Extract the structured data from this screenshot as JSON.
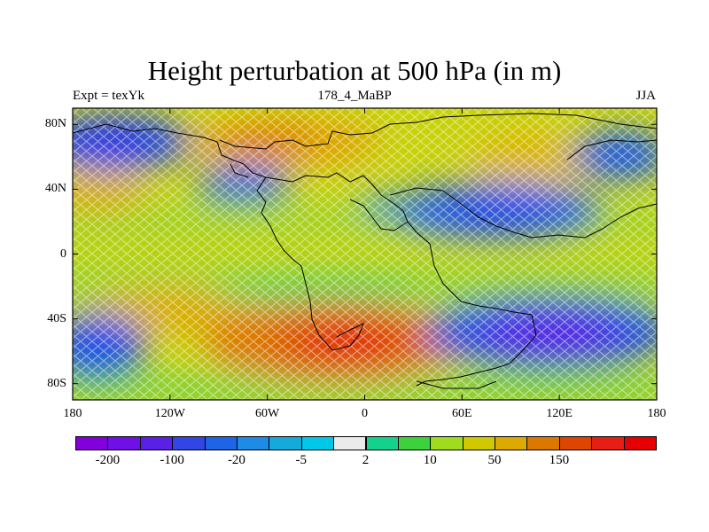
{
  "title": "Height perturbation at 500 hPa (in m)",
  "left_string": "Expt = texYk",
  "center_string": "178_4_MaBP",
  "right_string": "JJA",
  "map": {
    "projection": "cylindrical-equidistant",
    "lon_range": [
      -180,
      180
    ],
    "lat_range": [
      -90,
      90
    ],
    "lon_ticks": [
      {
        "value": -180,
        "label": "180"
      },
      {
        "value": -120,
        "label": "120W"
      },
      {
        "value": -60,
        "label": "60W"
      },
      {
        "value": 0,
        "label": "0"
      },
      {
        "value": 60,
        "label": "60E"
      },
      {
        "value": 120,
        "label": "120E"
      },
      {
        "value": 180,
        "label": "180"
      }
    ],
    "lat_ticks": [
      {
        "value": 80,
        "label": "80N"
      },
      {
        "value": 40,
        "label": "40N"
      },
      {
        "value": 0,
        "label": "0"
      },
      {
        "value": -40,
        "label": "40S"
      },
      {
        "value": -80,
        "label": "80S"
      }
    ],
    "features": [
      {
        "name": "low-north-pacific",
        "lon": -150,
        "lat": 65,
        "value": -100
      },
      {
        "name": "high-north-atlantic",
        "lon": -40,
        "lat": 70,
        "value": 80
      },
      {
        "name": "low-north-atlantic",
        "lon": -65,
        "lat": 43,
        "value": -100
      },
      {
        "name": "low-central-asia",
        "lon": 90,
        "lat": 35,
        "value": -100
      },
      {
        "name": "high-south-atlantic",
        "lon": -10,
        "lat": -55,
        "value": 200
      },
      {
        "name": "low-southern-indian-ocean",
        "lon": 100,
        "lat": -50,
        "value": -150
      },
      {
        "name": "low-south-pacific",
        "lon": -175,
        "lat": -60,
        "value": -80
      }
    ]
  },
  "colorbar": {
    "colors": [
      "#8200dc",
      "#6e10e6",
      "#5a20e6",
      "#3246e6",
      "#1e64e6",
      "#1e8ce6",
      "#14aadc",
      "#00c8e6",
      "#ebebeb",
      "#14d28c",
      "#3cd23c",
      "#a0dc1e",
      "#d2c800",
      "#dcaa00",
      "#dc7800",
      "#dc4600",
      "#e61e14",
      "#e60000"
    ],
    "labels": [
      {
        "after_box": 1,
        "text": "-200"
      },
      {
        "after_box": 3,
        "text": "-100"
      },
      {
        "after_box": 5,
        "text": "-20"
      },
      {
        "after_box": 7,
        "text": "-5"
      },
      {
        "after_box": 9,
        "text": "2"
      },
      {
        "after_box": 11,
        "text": "10"
      },
      {
        "after_box": 13,
        "text": "50"
      },
      {
        "after_box": 15,
        "text": "150"
      }
    ]
  }
}
